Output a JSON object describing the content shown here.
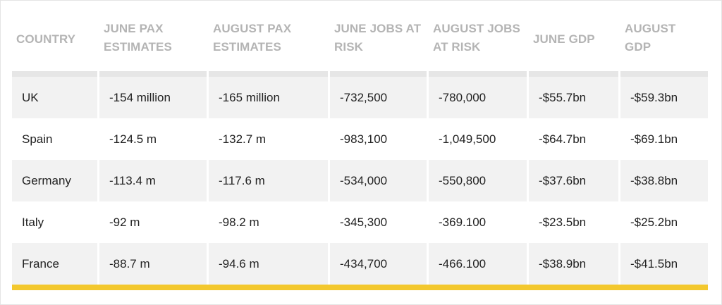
{
  "table": {
    "headers": [
      "COUNTRY",
      "JUNE PAX\nESTIMATES",
      "AUGUST PAX\nESTIMATES",
      "JUNE JOBS AT\nRISK",
      "AUGUST JOBS\nAT RISK",
      "JUNE GDP",
      "AUGUST\nGDP"
    ],
    "rows": [
      [
        "UK",
        "-154 million",
        "-165 million",
        "-732,500",
        "-780,000",
        "-$55.7bn",
        "-$59.3bn"
      ],
      [
        "Spain",
        "-124.5 m",
        "-132.7 m",
        "-983,100",
        "-1,049,500",
        "-$64.7bn",
        "-$69.1bn"
      ],
      [
        "Germany",
        "-113.4 m",
        "-117.6 m",
        "-534,000",
        "-550,800",
        "-$37.6bn",
        "-$38.8bn"
      ],
      [
        "Italy",
        "-92 m",
        "-98.2 m",
        "-345,300",
        "-369.100",
        "-$23.5bn",
        "-$25.2bn"
      ],
      [
        "France",
        "-88.7 m",
        "-94.6 m",
        "-434,700",
        "-466.100",
        "-$38.9bn",
        "-$41.5bn"
      ]
    ]
  },
  "colors": {
    "header_text": "#b4b4b4",
    "row_shaded": "#f2f2f2",
    "accent_bar": "#f3c82e"
  }
}
